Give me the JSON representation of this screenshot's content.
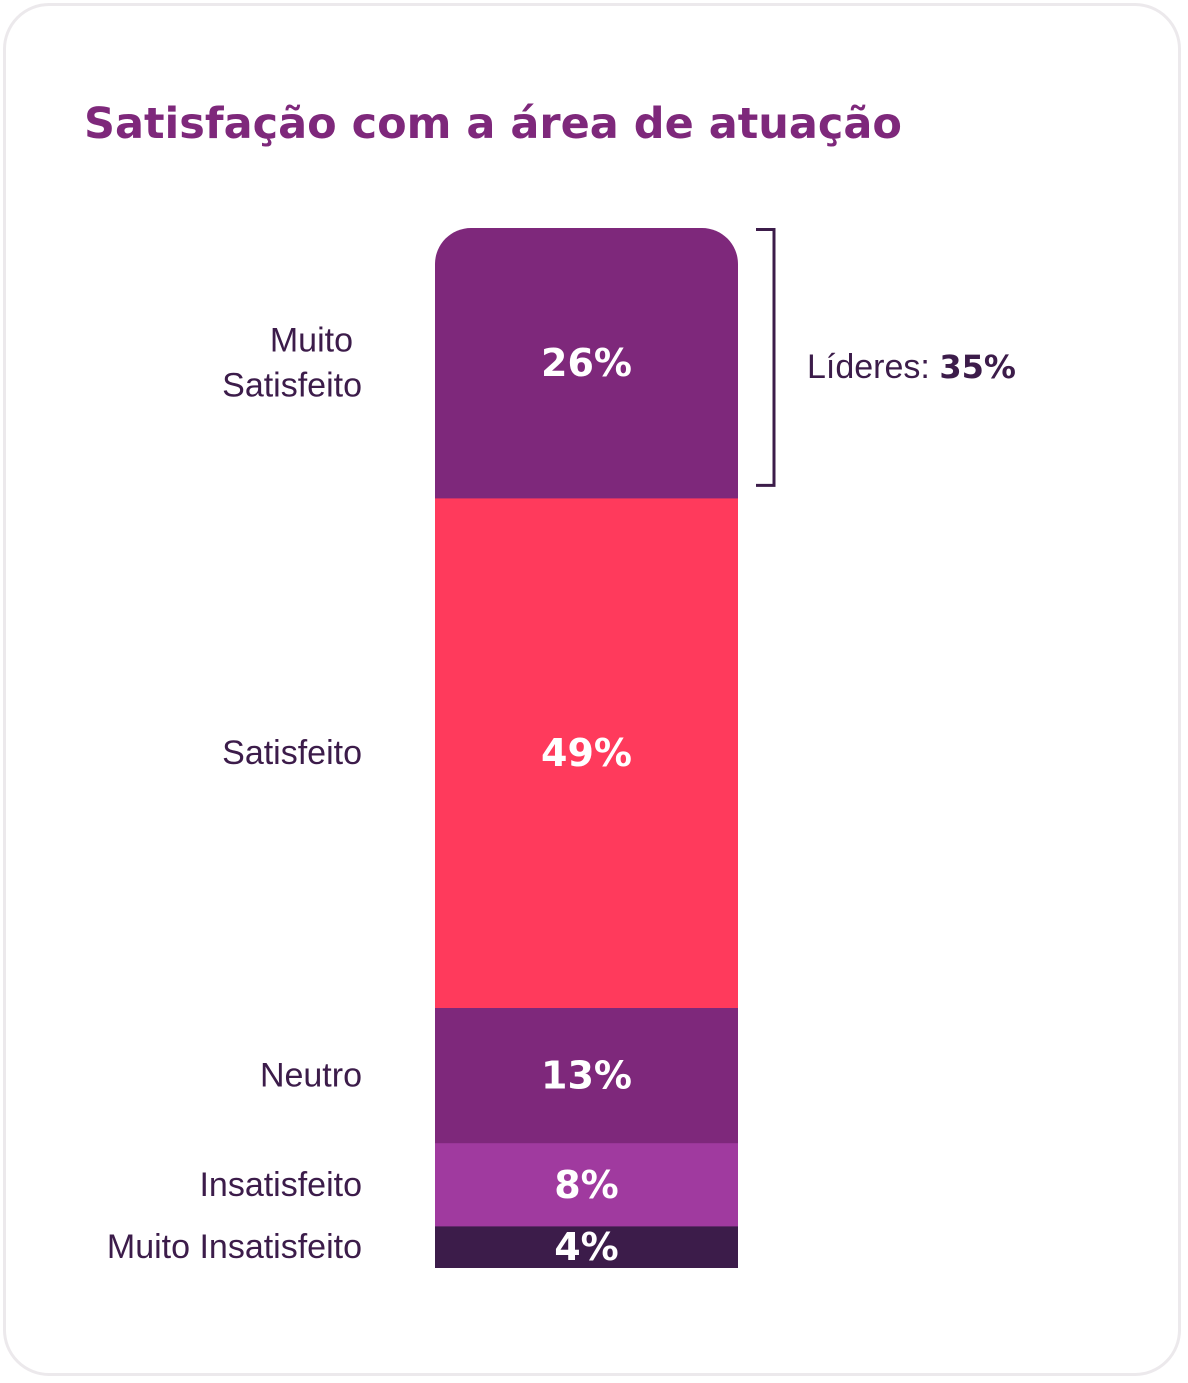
{
  "chart_data": {
    "type": "bar",
    "stacked": true,
    "title": "Satisfação com a área de atuação",
    "categories": [
      "Muito Satisfeito",
      "Satisfeito",
      "Neutro",
      "Insatisfeito",
      "Muito Insatisfeito"
    ],
    "category_label_lines": [
      [
        "Muito",
        "Satisfeito"
      ],
      [
        "Satisfeito"
      ],
      [
        "Neutro"
      ],
      [
        "Insatisfeito"
      ],
      [
        "Muito Insatisfeito"
      ]
    ],
    "values": [
      26,
      49,
      13,
      8,
      4
    ],
    "value_labels": [
      "26%",
      "49%",
      "13%",
      "8%",
      "4%"
    ],
    "colors": [
      "#7e287b",
      "#ff3a5c",
      "#7e287b",
      "#a03a9f",
      "#3c1c4a"
    ],
    "annotation": {
      "label": "Líderes: ",
      "value": "35%",
      "applies_to": "Muito Satisfeito"
    },
    "xlabel": "",
    "ylabel": "",
    "ylim": [
      0,
      100
    ],
    "grid": false,
    "legend": "none"
  },
  "colors": {
    "title": "#7e287b",
    "text": "#3c1c4a",
    "border": "#ece9ec",
    "background": "#ffffff"
  }
}
